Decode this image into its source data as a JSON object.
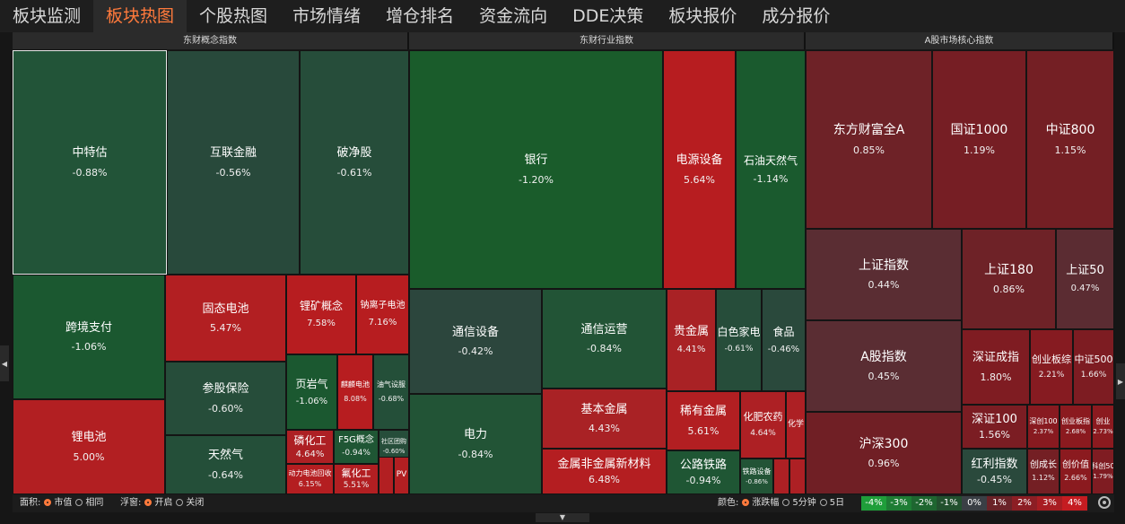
{
  "tabs": [
    {
      "label": "板块监测",
      "active": false
    },
    {
      "label": "板块热图",
      "active": true
    },
    {
      "label": "个股热图",
      "active": false
    },
    {
      "label": "市场情绪",
      "active": false
    },
    {
      "label": "增仓排名",
      "active": false
    },
    {
      "label": "资金流向",
      "active": false
    },
    {
      "label": "DDE决策",
      "active": false
    },
    {
      "label": "板块报价",
      "active": false
    },
    {
      "label": "成分报价",
      "active": false
    }
  ],
  "panels": [
    {
      "title": "东财概念指数",
      "tiles": [
        {
          "name": "中特估",
          "pct": "-0.88%",
          "color": "#225438",
          "selected": true
        },
        {
          "name": "互联金融",
          "pct": "-0.56%",
          "color": "#28493b"
        },
        {
          "name": "破净股",
          "pct": "-0.61%",
          "color": "#264d3a"
        },
        {
          "name": "跨境支付",
          "pct": "-1.06%",
          "color": "#1b5830"
        },
        {
          "name": "固态电池",
          "pct": "5.47%",
          "color": "#b21f22"
        },
        {
          "name": "锂矿概念",
          "pct": "7.58%",
          "color": "#b71d20"
        },
        {
          "name": "钠离子电池",
          "pct": "7.16%",
          "color": "#b71d20"
        },
        {
          "name": "参股保险",
          "pct": "-0.60%",
          "color": "#264d3a"
        },
        {
          "name": "页岩气",
          "pct": "-1.06%",
          "color": "#1b5830"
        },
        {
          "name": "麒麟电池",
          "pct": "8.08%",
          "color": "#b71d20"
        },
        {
          "name": "油气设服",
          "pct": "-0.68%",
          "color": "#244f39"
        },
        {
          "name": "锂电池",
          "pct": "5.00%",
          "color": "#b21f22"
        },
        {
          "name": "天然气",
          "pct": "-0.64%",
          "color": "#244f39"
        },
        {
          "name": "磷化工",
          "pct": "4.64%",
          "color": "#ad2024"
        },
        {
          "name": "F5G概念",
          "pct": "-0.94%",
          "color": "#1f5634"
        },
        {
          "name": "社区团购",
          "pct": "-0.60%",
          "color": "#264d3a"
        },
        {
          "name": "动力电池回收",
          "pct": "6.15%",
          "color": "#b41e21"
        },
        {
          "name": "氟化工",
          "pct": "5.51%",
          "color": "#b21f22"
        },
        {
          "name": "",
          "pct": "",
          "color": "#b21f22"
        },
        {
          "name": "PV",
          "pct": "",
          "color": "#b21f22"
        }
      ]
    },
    {
      "title": "东财行业指数",
      "tiles": [
        {
          "name": "银行",
          "pct": "-1.20%",
          "color": "#1a5c2b"
        },
        {
          "name": "电源设备",
          "pct": "5.64%",
          "color": "#b71d20"
        },
        {
          "name": "石油天然气",
          "pct": "-1.14%",
          "color": "#1a5a2e"
        },
        {
          "name": "通信设备",
          "pct": "-0.42%",
          "color": "#2c463d"
        },
        {
          "name": "通信运营",
          "pct": "-0.84%",
          "color": "#225436"
        },
        {
          "name": "贵金属",
          "pct": "4.41%",
          "color": "#a92225"
        },
        {
          "name": "白色家电",
          "pct": "-0.61%",
          "color": "#264d3a"
        },
        {
          "name": "食品",
          "pct": "-0.46%",
          "color": "#2a493c"
        },
        {
          "name": "电力",
          "pct": "-0.84%",
          "color": "#225436"
        },
        {
          "name": "基本金属",
          "pct": "4.43%",
          "color": "#a92225"
        },
        {
          "name": "稀有金属",
          "pct": "5.61%",
          "color": "#b21f22"
        },
        {
          "name": "化肥农药",
          "pct": "4.64%",
          "color": "#ad2024"
        },
        {
          "name": "化学",
          "pct": "",
          "color": "#ad2024"
        },
        {
          "name": "金属非金属新材料",
          "pct": "6.48%",
          "color": "#b41e21"
        },
        {
          "name": "公路铁路",
          "pct": "-0.94%",
          "color": "#1f5634"
        },
        {
          "name": "铁路设备",
          "pct": "-0.86%",
          "color": "#225436"
        },
        {
          "name": "",
          "pct": "",
          "color": "#ad2024"
        },
        {
          "name": "",
          "pct": "",
          "color": "#ad2024"
        }
      ]
    },
    {
      "title": "A股市场核心指数",
      "tiles": [
        {
          "name": "东方财富全A",
          "pct": "0.85%",
          "color": "#6e2227"
        },
        {
          "name": "国证1000",
          "pct": "1.19%",
          "color": "#761e24"
        },
        {
          "name": "中证800",
          "pct": "1.15%",
          "color": "#741f24"
        },
        {
          "name": "上证指数",
          "pct": "0.44%",
          "color": "#5a2d33"
        },
        {
          "name": "上证180",
          "pct": "0.86%",
          "color": "#6e2227"
        },
        {
          "name": "上证50",
          "pct": "0.47%",
          "color": "#5b2c32"
        },
        {
          "name": "A股指数",
          "pct": "0.45%",
          "color": "#5a2d33"
        },
        {
          "name": "深证成指",
          "pct": "1.80%",
          "color": "#7f1c22"
        },
        {
          "name": "创业板综",
          "pct": "2.21%",
          "color": "#861b21"
        },
        {
          "name": "中证500",
          "pct": "1.66%",
          "color": "#7d1c22"
        },
        {
          "name": "深证100",
          "pct": "1.56%",
          "color": "#7b1d23"
        },
        {
          "name": "深创100",
          "pct": "2.37%",
          "color": "#881a20"
        },
        {
          "name": "创业板指",
          "pct": "2.68%",
          "color": "#8b1a1f"
        },
        {
          "name": "创业",
          "pct": "2.73%",
          "color": "#8b1a1f"
        },
        {
          "name": "沪深300",
          "pct": "0.96%",
          "color": "#701f25"
        },
        {
          "name": "红利指数",
          "pct": "-0.45%",
          "color": "#2a493c"
        },
        {
          "name": "创成长",
          "pct": "1.12%",
          "color": "#741f24"
        },
        {
          "name": "创价值",
          "pct": "2.66%",
          "color": "#8b1a1f"
        },
        {
          "name": "科创50",
          "pct": "1.79%",
          "color": "#7f1c22"
        }
      ]
    }
  ],
  "bottom": {
    "area": {
      "label": "面积:",
      "options": [
        "市值",
        "相同"
      ],
      "selected": 0
    },
    "float": {
      "label": "浮窗:",
      "options": [
        "开启",
        "关闭"
      ],
      "selected": 0
    },
    "color": {
      "label": "颜色:",
      "options": [
        "涨跌幅",
        "5分钟",
        "5日"
      ],
      "selected": 0
    },
    "legend": [
      {
        "label": "-4%",
        "color": "#1f9e3a"
      },
      {
        "label": "-3%",
        "color": "#1e7d34"
      },
      {
        "label": "-2%",
        "color": "#1e6630"
      },
      {
        "label": "-1%",
        "color": "#22502e"
      },
      {
        "label": "0%",
        "color": "#3a3f45"
      },
      {
        "label": "1%",
        "color": "#6a2328"
      },
      {
        "label": "2%",
        "color": "#8c1e24"
      },
      {
        "label": "3%",
        "color": "#a81d22"
      },
      {
        "label": "4%",
        "color": "#c51c21"
      }
    ]
  }
}
